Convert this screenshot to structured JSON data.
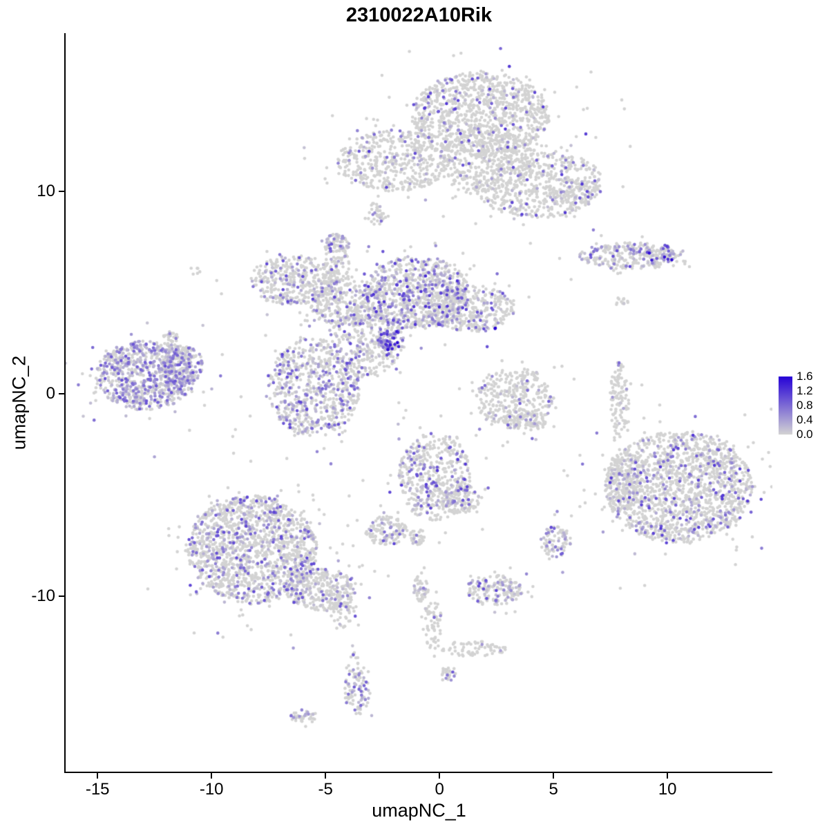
{
  "chart_data": {
    "type": "scatter",
    "title": "2310022A10Rik",
    "xlabel": "umapNC_1",
    "ylabel": "umapNC_2",
    "xlim": [
      -16.4,
      14.6
    ],
    "ylim": [
      -18.7,
      17.8
    ],
    "x_ticks": [
      -15,
      -10,
      -5,
      0,
      5,
      10
    ],
    "y_ticks": [
      10,
      0,
      -10
    ],
    "grid": false,
    "legend": {
      "position": "right",
      "ticks": [
        "1.6",
        "1.2",
        "0.8",
        "0.4",
        "0.0"
      ],
      "vmax": 1.6
    },
    "colors": {
      "low": "#d3d3d3",
      "high": "#2602d6"
    },
    "point_radius": 2.3,
    "cluster_fields": [
      "x",
      "y",
      "sx",
      "sy",
      "n",
      "expressed_frac",
      "expr_max",
      "expr_min_opt"
    ],
    "clusters": [
      [
        1.8,
        13.8,
        1.6,
        1.1,
        1000,
        0.1,
        1.2
      ],
      [
        -2.0,
        11.5,
        1.3,
        0.8,
        500,
        0.12,
        1.2
      ],
      [
        4.3,
        10.4,
        1.5,
        0.9,
        550,
        0.12,
        1.2
      ],
      [
        2.1,
        11.4,
        1.1,
        0.9,
        350,
        0.08,
        1.2
      ],
      [
        5.8,
        9.8,
        0.5,
        0.4,
        90,
        0.15,
        1.0
      ],
      [
        -2.8,
        8.9,
        0.25,
        0.3,
        35,
        0.15,
        1.0
      ],
      [
        8.4,
        6.8,
        1.2,
        0.35,
        260,
        0.3,
        1.1
      ],
      [
        9.6,
        6.9,
        0.4,
        0.25,
        80,
        0.35,
        1.6
      ],
      [
        -6.4,
        5.6,
        1.0,
        0.65,
        380,
        0.25,
        1.1
      ],
      [
        -4.0,
        4.4,
        0.9,
        0.55,
        280,
        0.2,
        1.1
      ],
      [
        -1.0,
        5.0,
        1.2,
        0.95,
        800,
        0.35,
        1.3
      ],
      [
        1.4,
        4.2,
        1.0,
        0.6,
        380,
        0.2,
        1.1
      ],
      [
        -4.5,
        6.3,
        0.3,
        0.8,
        110,
        0.15,
        1.0
      ],
      [
        -4.5,
        7.4,
        0.3,
        0.25,
        50,
        0.5,
        1.1
      ],
      [
        -5.5,
        0.3,
        1.05,
        1.3,
        700,
        0.3,
        1.1
      ],
      [
        -3.2,
        2.6,
        0.85,
        0.9,
        350,
        0.25,
        1.1
      ],
      [
        -2.2,
        2.7,
        0.3,
        0.3,
        70,
        0.65,
        1.6
      ],
      [
        2.5,
        3.3,
        0.06,
        0.06,
        2,
        1.0,
        1.6,
        0.9
      ],
      [
        -12.9,
        0.9,
        1.15,
        0.9,
        800,
        0.55,
        1.0
      ],
      [
        -11.3,
        1.4,
        0.5,
        0.5,
        180,
        0.4,
        1.0
      ],
      [
        -11.8,
        2.5,
        0.25,
        0.3,
        40,
        0.3,
        0.9
      ],
      [
        3.3,
        -0.2,
        0.9,
        0.8,
        350,
        0.15,
        1.0
      ],
      [
        3.8,
        -1.3,
        0.5,
        0.3,
        80,
        0.1,
        1.0
      ],
      [
        7.9,
        -0.3,
        0.22,
        1.0,
        110,
        0.1,
        1.0
      ],
      [
        8.0,
        4.5,
        0.15,
        0.15,
        12,
        0.05,
        0.8
      ],
      [
        10.5,
        -4.6,
        1.7,
        1.45,
        1600,
        0.18,
        1.2
      ],
      [
        8.1,
        -4.3,
        0.4,
        0.8,
        140,
        0.15,
        1.1
      ],
      [
        -8.2,
        -7.7,
        1.5,
        1.4,
        1500,
        0.22,
        1.1
      ],
      [
        -5.2,
        -9.7,
        0.8,
        0.55,
        300,
        0.2,
        1.1
      ],
      [
        -4.2,
        -10.6,
        0.3,
        0.5,
        60,
        0.15,
        1.0
      ],
      [
        -0.2,
        -4.1,
        0.85,
        1.15,
        480,
        0.25,
        1.2
      ],
      [
        0.9,
        -5.2,
        0.45,
        0.4,
        120,
        0.2,
        1.1
      ],
      [
        -2.3,
        -6.8,
        0.5,
        0.4,
        130,
        0.2,
        1.1
      ],
      [
        -1.0,
        -7.1,
        0.2,
        0.2,
        35,
        0.2,
        1.0
      ],
      [
        5.1,
        -7.3,
        0.35,
        0.4,
        90,
        0.3,
        1.1
      ],
      [
        2.4,
        -9.7,
        0.65,
        0.4,
        180,
        0.25,
        1.1
      ],
      [
        -0.8,
        -9.6,
        0.18,
        0.35,
        45,
        0.15,
        1.0
      ],
      [
        -0.3,
        -11.3,
        0.2,
        0.7,
        60,
        0.1,
        1.0
      ],
      [
        1.5,
        -12.6,
        0.75,
        0.2,
        70,
        0.1,
        1.0
      ],
      [
        -3.6,
        -14.7,
        0.3,
        0.6,
        90,
        0.3,
        1.1
      ],
      [
        -3.8,
        -13.4,
        0.15,
        0.5,
        15,
        0.1,
        0.9
      ],
      [
        -6.0,
        -16.0,
        0.3,
        0.18,
        40,
        0.2,
        1.0
      ],
      [
        0.4,
        -13.8,
        0.18,
        0.18,
        25,
        0.2,
        1.0
      ],
      [
        -10.7,
        6.1,
        0.12,
        0.12,
        6,
        0.0,
        0
      ]
    ]
  }
}
